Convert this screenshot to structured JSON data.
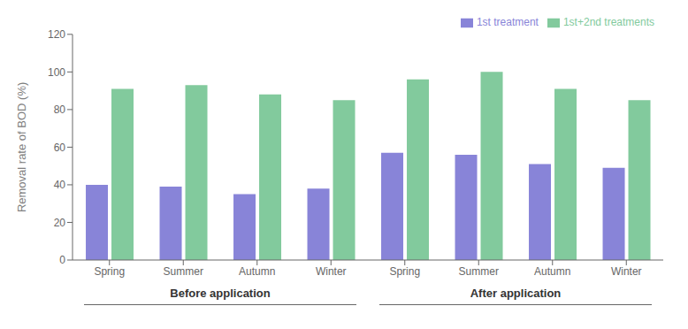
{
  "chart_data": {
    "type": "bar",
    "categories": [
      "Spring",
      "Summer",
      "Autumn",
      "Winter",
      "Spring",
      "Summer",
      "Autumn",
      "Winter"
    ],
    "series": [
      {
        "name": "1st treatment",
        "color": "#8884d8",
        "values": [
          40,
          39,
          35,
          38,
          57,
          56,
          51,
          49
        ]
      },
      {
        "name": "1st+2nd treatments",
        "color": "#82ca9d",
        "values": [
          91,
          93,
          88,
          85,
          96,
          100,
          91,
          85
        ]
      }
    ],
    "y_label": "Removal rate of BOD (%)",
    "ylim": [
      0,
      120
    ],
    "yticks": [
      0,
      20,
      40,
      60,
      80,
      100,
      120
    ],
    "annotations": [
      "Before application",
      "After application"
    ],
    "legend": "upper right",
    "grid": false
  }
}
